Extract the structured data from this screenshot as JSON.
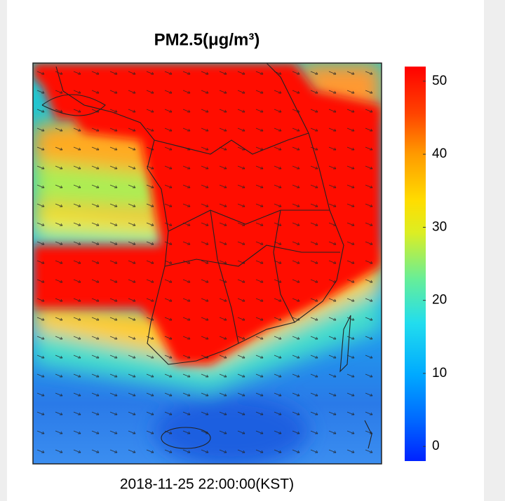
{
  "title": "PM2.5(μg/m³)",
  "timestamp": "2018-11-25 22:00:00(KST)",
  "colorbar": {
    "range": [
      -2,
      52
    ],
    "ticks": [
      0,
      10,
      20,
      30,
      40,
      50
    ]
  }
}
